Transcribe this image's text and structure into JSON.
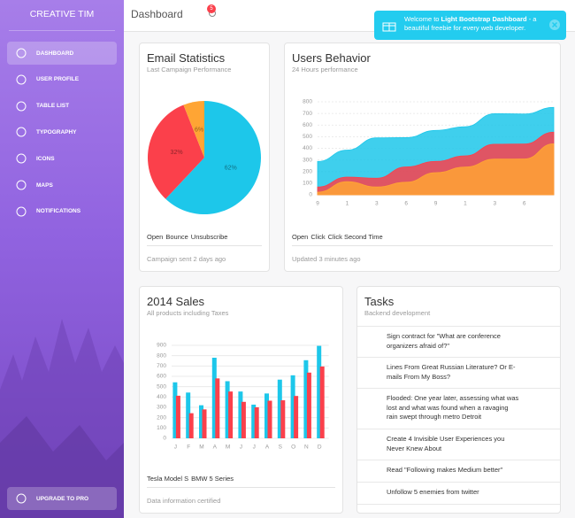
{
  "sidebar": {
    "brand": "CREATIVE TIM",
    "items": [
      "DASHBOARD",
      "USER PROFILE",
      "TABLE LIST",
      "TYPOGRAPHY",
      "ICONS",
      "MAPS",
      "NOTIFICATIONS"
    ],
    "upgrade": "UPGRADE TO PRO"
  },
  "navbar": {
    "title": "Dashboard",
    "badge": 5
  },
  "notification": {
    "text_before": "Welcome to ",
    "bold": "Light Bootstrap Dashboard",
    "text_after": " - a beautiful freebie for every web developer."
  },
  "chart_data": [
    {
      "type": "pie",
      "title": "Email Statistics",
      "subtitle": "Last Campaign Performance",
      "categories": [
        "Open",
        "Bounce",
        "Unsubscribe"
      ],
      "values": [
        62,
        32,
        6
      ],
      "value_labels": [
        "62%",
        "32%",
        "6%"
      ],
      "colors": [
        "#1dc7ea",
        "#fb404b",
        "#ffa534"
      ],
      "footer": "Campaign sent 2 days ago"
    },
    {
      "type": "line",
      "title": "Users Behavior",
      "subtitle": "24 Hours performance",
      "area": true,
      "categories": [
        "9",
        "1",
        "3",
        "6",
        "9",
        "1",
        "3",
        "6",
        null
      ],
      "series": [
        {
          "name": "Open",
          "color": "#1dc7ea",
          "values": [
            287,
            385,
            490,
            492,
            554,
            586,
            698,
            695,
            752
          ]
        },
        {
          "name": "Click",
          "color": "#fb404b",
          "values": [
            67,
            152,
            143,
            240,
            287,
            335,
            435,
            437,
            539
          ]
        },
        {
          "name": "Click Second Time",
          "color": "#ffa534",
          "values": [
            23,
            113,
            67,
            108,
            190,
            239,
            307,
            308,
            439
          ]
        }
      ],
      "ylim": [
        0,
        800
      ],
      "yticks": [
        0,
        100,
        200,
        300,
        400,
        500,
        600,
        700,
        800
      ],
      "grid": true,
      "footer": "Updated 3 minutes ago"
    },
    {
      "type": "bar",
      "title": "2014 Sales",
      "subtitle": "All products including Taxes",
      "categories": [
        "J",
        "F",
        "M",
        "A",
        "M",
        "J",
        "J",
        "A",
        "S",
        "O",
        "N",
        "D"
      ],
      "series": [
        {
          "name": "Tesla Model S",
          "color": "#1dc7ea",
          "values": [
            542,
            443,
            320,
            780,
            553,
            453,
            326,
            434,
            568,
            610,
            756,
            895
          ]
        },
        {
          "name": "BMW 5 Series",
          "color": "#fb404b",
          "values": [
            412,
            243,
            280,
            580,
            453,
            353,
            300,
            364,
            368,
            410,
            636,
            695
          ]
        }
      ],
      "ylim": [
        0,
        900
      ],
      "yticks": [
        0,
        100,
        200,
        300,
        400,
        500,
        600,
        700,
        800,
        900
      ],
      "grid": true,
      "footer": "Data information certified"
    }
  ],
  "tasks": {
    "title": "Tasks",
    "subtitle": "Backend development",
    "items": [
      "Sign contract for \"What are conference organizers afraid of?\"",
      "Lines From Great Russian Literature? Or E-mails From My Boss?",
      "Flooded: One year later, assessing what was lost and what was found when a ravaging rain swept through metro Detroit",
      "Create 4 Invisible User Experiences you Never Knew About",
      "Read \"Following makes Medium better\"",
      "Unfollow 5 enemies from twitter"
    ]
  }
}
